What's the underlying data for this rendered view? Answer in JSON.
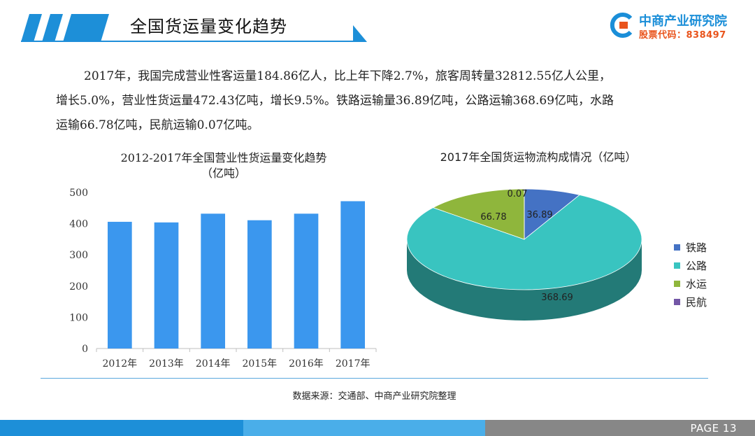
{
  "header": {
    "title": "全国货运量变化趋势"
  },
  "brand": {
    "name": "中商产业研究院",
    "stock_code": "股票代码：838497",
    "color_primary": "#1a8ed8",
    "color_secondary": "#e9541c"
  },
  "intro": {
    "line1": "2017年，我国完成营业性客运量184.86亿人，比上年下降2.7%，旅客周转量32812.55亿人公里，",
    "line2": "增长5.0%，营业性货运量472.43亿吨，增长9.5%。铁路运输量36.89亿吨，公路运输368.69亿吨，水路",
    "line3": "运输66.78亿吨，民航运输0.07亿吨。"
  },
  "chart_data": [
    {
      "type": "bar",
      "title": "2012-2017年全国营业性货运量变化趋势",
      "subtitle": "（亿吨）",
      "categories": [
        "2012年",
        "2013年",
        "2014年",
        "2015年",
        "2016年",
        "2017年"
      ],
      "values": [
        406,
        404,
        432,
        411,
        432,
        472
      ],
      "ylim": [
        0,
        500
      ],
      "yticks": [
        "0",
        "100",
        "200",
        "300",
        "400",
        "500"
      ],
      "color": "#3b97ee",
      "grid": false
    },
    {
      "type": "pie",
      "title": "2017年全国货运物流构成情况（亿吨）",
      "categories": [
        "铁路",
        "公路",
        "水运",
        "民航"
      ],
      "values": [
        36.89,
        368.69,
        66.78,
        0.07
      ],
      "labels": [
        "36.89",
        "368.69",
        "66.78",
        "0.07"
      ],
      "colors": [
        "#4472c4",
        "#39c4c0",
        "#8fb63c",
        "#7356a6"
      ],
      "legend": "right"
    }
  ],
  "footer": {
    "source": "数据来源：交通部、中商产业研究院整理",
    "page": "PAGE  13",
    "colors": [
      "#1d8fd8",
      "#4aaee9",
      "#878787"
    ]
  }
}
